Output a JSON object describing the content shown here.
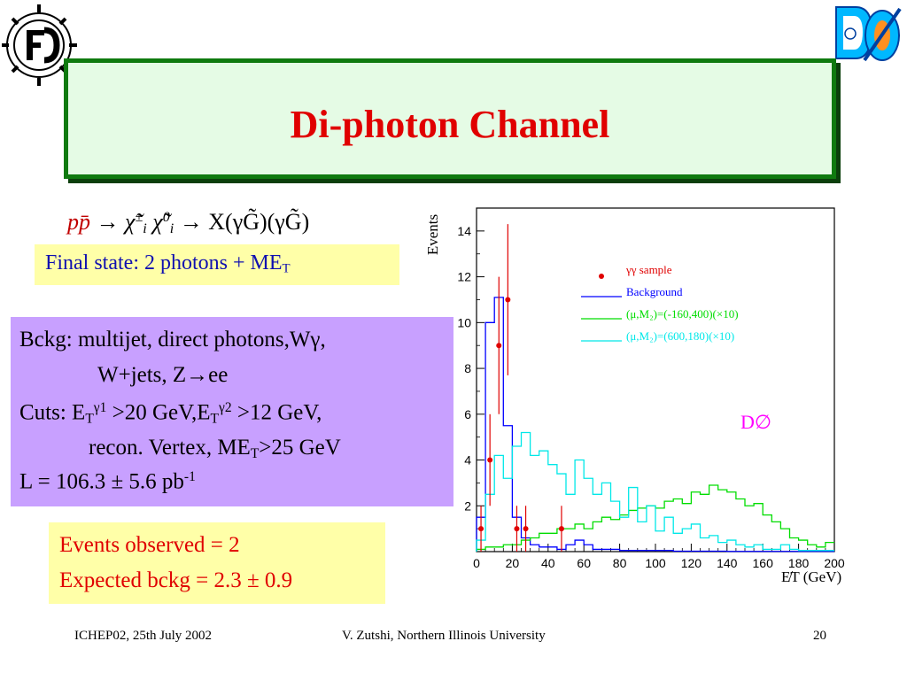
{
  "title": "Di-photon Channel",
  "process": {
    "lhs": "pp̄",
    "arrow": "→",
    "chi_pm": "χ̃",
    "chi_pm_sup": "±",
    "chi_pm_sub": "i",
    "chi_0": "χ̃",
    "chi_0_sup": "0",
    "chi_0_sub": "i",
    "arrow2": "→",
    "rhs": "X(γG̃)(γG̃)"
  },
  "final_state": {
    "text": "Final state: 2 photons + ME",
    "sub": "T"
  },
  "background_box": {
    "line1": "Bckg: multijet, direct photons,Wγ,",
    "line2": "W+jets, Z→ee",
    "line3_a": "Cuts: E",
    "line3_sub1": "T",
    "line3_sup1": "γ1",
    "line3_b": " >20 GeV,E",
    "line3_sub2": "T",
    "line3_sup2": "γ2",
    "line3_c": " >12 GeV,",
    "line4_a": "recon. Vertex, ME",
    "line4_sub": "T",
    "line4_b": ">25 GeV",
    "line5_a": "L = 106.3 ± 5.6 pb",
    "line5_sup": "-1"
  },
  "results": {
    "observed": "Events observed = 2",
    "expected": "Expected bckg = 2.3 ± 0.9"
  },
  "footer": {
    "left": "ICHEP02, 25th July 2002",
    "center": "V. Zutshi, Northern Illinois University",
    "page": "20"
  },
  "chart_data": {
    "type": "histogram",
    "ylabel": "Events",
    "xlabel": "E̸T (GeV)",
    "xlim": [
      0,
      200
    ],
    "ylim": [
      0,
      15
    ],
    "xticks": [
      "0",
      "20",
      "40",
      "60",
      "80",
      "100",
      "120",
      "140",
      "160",
      "180",
      "200"
    ],
    "yticks": [
      "2",
      "4",
      "6",
      "8",
      "10",
      "12",
      "14"
    ],
    "annotation": "D∅",
    "legend_placement": "top-right",
    "colors": {
      "data": "#e00000",
      "background": "#0000ff",
      "signal1": "#00dd00",
      "signal2": "#00e8e8",
      "annotation": "#ff00ff"
    },
    "bin_width": 5,
    "series": [
      {
        "name": "γγ sample",
        "kind": "points",
        "x": [
          2.5,
          7.5,
          12.5,
          17.5,
          22.5,
          27.5,
          47.5
        ],
        "y": [
          1,
          4,
          9,
          11,
          1,
          1,
          1
        ],
        "yerr": [
          1.0,
          2.0,
          3.0,
          3.3,
          1.0,
          1.0,
          1.0
        ]
      },
      {
        "name": "Background",
        "kind": "step",
        "values": [
          1.5,
          10.0,
          11.1,
          5.5,
          1.5,
          0.6,
          0.3,
          0.2,
          0.2,
          0.1,
          0.3,
          0.5,
          0.3,
          0.1,
          0.1,
          0.1,
          0.05,
          0.05,
          0.05,
          0.05,
          0.05,
          0.05,
          0.02,
          0.02,
          0.02,
          0.02,
          0.02,
          0.02,
          0.01,
          0.01,
          0.01,
          0.01,
          0.01,
          0.01,
          0.01,
          0.01,
          0.01,
          0.01,
          0.01,
          0.01
        ]
      },
      {
        "name": "(μ,M₂)=(-160,400)(×10)",
        "kind": "step",
        "values": [
          0.1,
          0.2,
          0.2,
          0.3,
          0.3,
          0.5,
          0.6,
          0.8,
          0.8,
          1.0,
          1.0,
          1.2,
          1.0,
          1.3,
          1.5,
          1.4,
          1.6,
          1.8,
          1.9,
          2.0,
          1.9,
          2.2,
          2.3,
          2.1,
          2.6,
          2.5,
          2.9,
          2.7,
          2.6,
          2.3,
          2.0,
          2.1,
          1.6,
          1.3,
          1.0,
          0.6,
          0.5,
          0.3,
          0.2,
          0.4
        ]
      },
      {
        "name": "(μ,M₂)=(600,180)(×10)",
        "kind": "step",
        "values": [
          0.5,
          2.5,
          4.2,
          3.2,
          4.6,
          5.2,
          4.2,
          4.4,
          3.8,
          3.4,
          2.5,
          4.0,
          3.2,
          2.5,
          3.0,
          2.2,
          1.5,
          2.8,
          1.3,
          2.0,
          0.9,
          1.5,
          0.8,
          1.0,
          1.2,
          0.6,
          0.7,
          0.4,
          0.5,
          0.3,
          0.2,
          0.3,
          0.1,
          0.1,
          0.3,
          0.1,
          0.05,
          0.05,
          0.05,
          0.05
        ]
      }
    ]
  }
}
